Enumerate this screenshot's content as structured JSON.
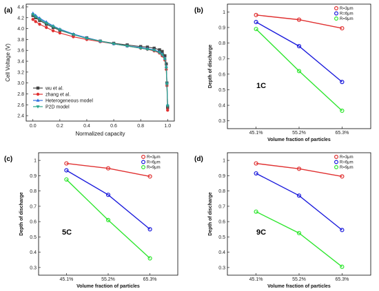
{
  "chart_data": [
    {
      "panel_label": "(a)",
      "type": "line",
      "xlabel": "Normalized capacity",
      "ylabel": "Cell Voltage (V)",
      "xlim": [
        -0.05,
        1.05
      ],
      "ylim": [
        2.3,
        4.45
      ],
      "xticks": [
        "0.0",
        "0.2",
        "0.4",
        "0.6",
        "0.8",
        "1.0"
      ],
      "yticks": [
        "2.4",
        "2.6",
        "2.8",
        "3.0",
        "3.2",
        "3.4",
        "3.6",
        "3.8",
        "4.0",
        "4.2",
        "4.4"
      ],
      "legend_position": "bottom-left",
      "series": [
        {
          "name": "wu et al.",
          "color": "#444444",
          "marker": "square",
          "x": [
            0,
            0.02,
            0.05,
            0.1,
            0.15,
            0.2,
            0.3,
            0.4,
            0.5,
            0.6,
            0.7,
            0.8,
            0.85,
            0.9,
            0.94,
            0.96,
            0.98,
            0.99,
            0.995,
            1.0
          ],
          "y": [
            4.24,
            4.2,
            4.15,
            4.08,
            4.02,
            3.97,
            3.89,
            3.83,
            3.77,
            3.73,
            3.7,
            3.67,
            3.66,
            3.64,
            3.61,
            3.58,
            3.5,
            3.35,
            3.0,
            2.55
          ]
        },
        {
          "name": "zhang et al.",
          "color": "#e03030",
          "marker": "circle",
          "x": [
            0,
            0.02,
            0.05,
            0.1,
            0.15,
            0.2,
            0.3,
            0.4,
            0.5,
            0.6,
            0.7,
            0.8,
            0.85,
            0.9,
            0.94,
            0.96,
            0.98,
            0.99,
            0.995,
            1.0
          ],
          "y": [
            4.17,
            4.13,
            4.08,
            4.02,
            3.96,
            3.92,
            3.85,
            3.8,
            3.76,
            3.72,
            3.68,
            3.64,
            3.62,
            3.59,
            3.55,
            3.5,
            3.42,
            3.25,
            2.95,
            2.5
          ]
        },
        {
          "name": "Heterogeneous model",
          "color": "#2f6fe0",
          "marker": "triangle-up",
          "x": [
            0,
            0.02,
            0.05,
            0.1,
            0.15,
            0.2,
            0.3,
            0.4,
            0.5,
            0.6,
            0.7,
            0.8,
            0.85,
            0.9,
            0.94,
            0.96,
            0.98,
            0.99,
            0.995,
            1.0
          ],
          "y": [
            4.28,
            4.24,
            4.19,
            4.12,
            4.05,
            3.99,
            3.9,
            3.83,
            3.77,
            3.72,
            3.68,
            3.65,
            3.63,
            3.61,
            3.57,
            3.53,
            3.45,
            3.3,
            3.0,
            2.6
          ]
        },
        {
          "name": "P2D model",
          "color": "#2aa78c",
          "marker": "triangle-down",
          "x": [
            0,
            0.02,
            0.05,
            0.1,
            0.15,
            0.2,
            0.3,
            0.4,
            0.5,
            0.6,
            0.7,
            0.8,
            0.85,
            0.9,
            0.94,
            0.96,
            0.98,
            0.99,
            0.995,
            1.0
          ],
          "y": [
            4.26,
            4.22,
            4.17,
            4.1,
            4.04,
            3.98,
            3.89,
            3.82,
            3.77,
            3.72,
            3.68,
            3.64,
            3.62,
            3.6,
            3.56,
            3.52,
            3.44,
            3.28,
            2.98,
            2.58
          ]
        }
      ]
    },
    {
      "panel_label": "(b)",
      "type": "line",
      "annotation": "1C",
      "xlabel": "Volume fraction of particles",
      "ylabel": "Depth of discharge",
      "categories": [
        "45.1%",
        "55.2%",
        "65.3%"
      ],
      "ylim": [
        0.25,
        1.05
      ],
      "yticks": [
        "0.3",
        "0.4",
        "0.5",
        "0.6",
        "0.7",
        "0.8",
        "0.9",
        "1"
      ],
      "legend_position": "top-right",
      "series": [
        {
          "name": "R=3μm",
          "color": "#e03030",
          "values": [
            0.98,
            0.95,
            0.895
          ]
        },
        {
          "name": "R=6μm",
          "color": "#1a1adc",
          "values": [
            0.935,
            0.78,
            0.55
          ]
        },
        {
          "name": "R=9μm",
          "color": "#2ee62e",
          "values": [
            0.89,
            0.62,
            0.365
          ]
        }
      ]
    },
    {
      "panel_label": "(c)",
      "type": "line",
      "annotation": "5C",
      "xlabel": "Volume fraction of particles",
      "ylabel": "Depth of discharge",
      "categories": [
        "45.1%",
        "55.2%",
        "65.3%"
      ],
      "ylim": [
        0.25,
        1.05
      ],
      "yticks": [
        "0.3",
        "0.4",
        "0.5",
        "0.6",
        "0.7",
        "0.8",
        "0.9",
        "1"
      ],
      "legend_position": "top-right",
      "series": [
        {
          "name": "R=3μm",
          "color": "#e03030",
          "values": [
            0.98,
            0.948,
            0.895
          ]
        },
        {
          "name": "R=6μm",
          "color": "#1a1adc",
          "values": [
            0.935,
            0.775,
            0.55
          ]
        },
        {
          "name": "R=9μm",
          "color": "#2ee62e",
          "values": [
            0.875,
            0.61,
            0.36
          ]
        }
      ]
    },
    {
      "panel_label": "(d)",
      "type": "line",
      "annotation": "9C",
      "xlabel": "Volume fraction of particles",
      "ylabel": "Depth of discharge",
      "categories": [
        "45.1%",
        "55.2%",
        "65.3%"
      ],
      "ylim": [
        0.25,
        1.05
      ],
      "yticks": [
        "0.3",
        "0.4",
        "0.5",
        "0.6",
        "0.7",
        "0.8",
        "0.9",
        "1"
      ],
      "legend_position": "top-right",
      "series": [
        {
          "name": "R=3μm",
          "color": "#e03030",
          "values": [
            0.98,
            0.945,
            0.895
          ]
        },
        {
          "name": "R=6μm",
          "color": "#1a1adc",
          "values": [
            0.915,
            0.77,
            0.545
          ]
        },
        {
          "name": "R=9μm",
          "color": "#2ee62e",
          "values": [
            0.665,
            0.525,
            0.305
          ]
        }
      ]
    }
  ]
}
